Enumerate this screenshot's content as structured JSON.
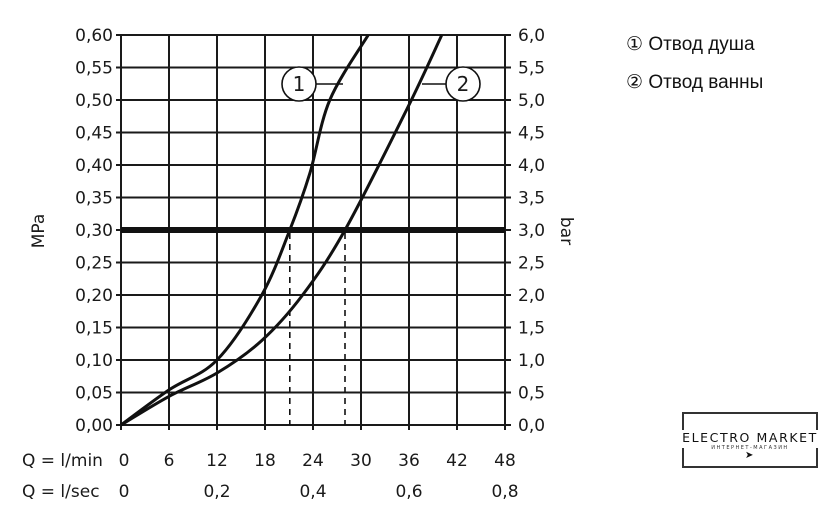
{
  "legend": [
    {
      "marker": "①",
      "label": "Отвод душа"
    },
    {
      "marker": "②",
      "label": "Отвод ванны"
    }
  ],
  "logo": {
    "text": "ELECTRO MARKET",
    "subtext": "ИНТЕРНЕТ-МАГАЗИН"
  },
  "chart_data": {
    "type": "line",
    "title": "",
    "ylabel": "MPa",
    "ylabel_right": "bar",
    "xlabel_rows": [
      {
        "label": "Q = l/min",
        "ticks": [
          {
            "value": 0,
            "label": "0"
          },
          {
            "value": 6,
            "label": "6"
          },
          {
            "value": 12,
            "label": "12"
          },
          {
            "value": 18,
            "label": "18"
          },
          {
            "value": 24,
            "label": "24"
          },
          {
            "value": 30,
            "label": "30"
          },
          {
            "value": 36,
            "label": "36"
          },
          {
            "value": 42,
            "label": "42"
          },
          {
            "value": 48,
            "label": "48"
          }
        ]
      },
      {
        "label": "Q = l/sec",
        "ticks": [
          {
            "value": 0,
            "label": "0"
          },
          {
            "value": 12,
            "label": "0,2"
          },
          {
            "value": 24,
            "label": "0,4"
          },
          {
            "value": 36,
            "label": "0,6"
          },
          {
            "value": 48,
            "label": "0,8"
          }
        ]
      }
    ],
    "xlim": [
      0,
      48
    ],
    "ylim": [
      0,
      0.6
    ],
    "yticks_left": [
      "0,00",
      "0,05",
      "0,10",
      "0,15",
      "0,20",
      "0,25",
      "0,30",
      "0,35",
      "0,40",
      "0,45",
      "0,50",
      "0,55",
      "0,60"
    ],
    "yticks_right": [
      "0,0",
      "0,5",
      "1,0",
      "1,5",
      "2,0",
      "2,5",
      "3,0",
      "3,5",
      "4,0",
      "4,5",
      "5,0",
      "5,5",
      "6,0"
    ],
    "grid": true,
    "reference_line": {
      "y": 0.3
    },
    "series": [
      {
        "name": "1",
        "x": [
          0,
          6,
          12,
          17.6,
          21.1,
          23.6,
          26.1,
          30.9
        ],
        "y": [
          0,
          0.054,
          0.1,
          0.2,
          0.3,
          0.387,
          0.5,
          0.6
        ],
        "drop_x": 21.1
      },
      {
        "name": "2",
        "x": [
          0,
          6,
          12,
          17.6,
          22.7,
          28,
          35.7,
          40.1
        ],
        "y": [
          0,
          0.044,
          0.08,
          0.13,
          0.2,
          0.3,
          0.485,
          0.6
        ],
        "drop_x": 28
      }
    ]
  }
}
